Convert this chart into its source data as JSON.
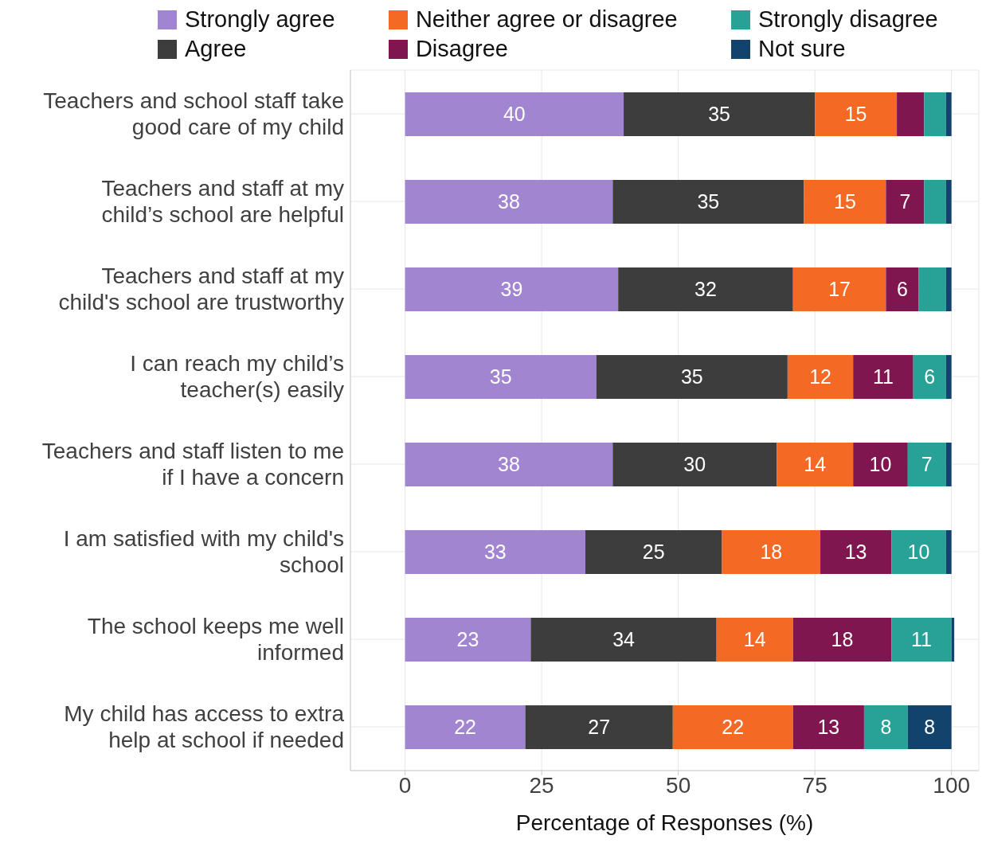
{
  "chart_data": {
    "type": "bar",
    "orientation": "horizontal",
    "stacked": true,
    "xlabel": "Percentage of Responses (%)",
    "categories": [
      "Teachers and school staff take good care of my child",
      "Teachers and staff at my child’s school are helpful",
      "Teachers and staff at my child's school are trustworthy",
      "I can reach my child’s teacher(s) easily",
      "Teachers and staff listen to me if I have a concern",
      "I am satisfied with my child's school",
      "The school keeps me well informed",
      "My child has access to extra help at school if needed"
    ],
    "series": [
      {
        "name": "Strongly agree",
        "color": "#a285d1",
        "values": [
          40,
          38,
          39,
          35,
          38,
          33,
          23,
          22
        ],
        "value_labels": [
          "40",
          "38",
          "39",
          "35",
          "38",
          "33",
          "23",
          "22"
        ]
      },
      {
        "name": "Agree",
        "color": "#3d3d3d",
        "values": [
          35,
          35,
          32,
          35,
          30,
          25,
          34,
          27
        ],
        "value_labels": [
          "35",
          "35",
          "32",
          "35",
          "30",
          "25",
          "34",
          "27"
        ]
      },
      {
        "name": "Neither agree or disagree",
        "color": "#f46a25",
        "values": [
          15,
          15,
          17,
          12,
          14,
          18,
          14,
          22
        ],
        "value_labels": [
          "15",
          "15",
          "17",
          "12",
          "14",
          "18",
          "14",
          "22"
        ]
      },
      {
        "name": "Disagree",
        "color": "#801650",
        "values": [
          5,
          7,
          6,
          11,
          10,
          13,
          18,
          13
        ],
        "value_labels": [
          null,
          "7",
          "6",
          "11",
          "10",
          "13",
          "18",
          "13"
        ]
      },
      {
        "name": "Strongly disagree",
        "color": "#28a197",
        "values": [
          4,
          4,
          5,
          6,
          7,
          10,
          11,
          8
        ],
        "value_labels": [
          null,
          null,
          null,
          "6",
          "7",
          "10",
          "11",
          "8"
        ]
      },
      {
        "name": "Not sure",
        "color": "#12436d",
        "values": [
          1,
          1,
          1,
          1,
          1,
          1,
          0.5,
          8
        ],
        "value_labels": [
          null,
          null,
          null,
          null,
          null,
          null,
          null,
          "8"
        ]
      }
    ],
    "xlim": [
      -10,
      105
    ],
    "xticks": [
      0,
      25,
      50,
      75,
      100
    ],
    "grid": true,
    "legend": "top"
  }
}
